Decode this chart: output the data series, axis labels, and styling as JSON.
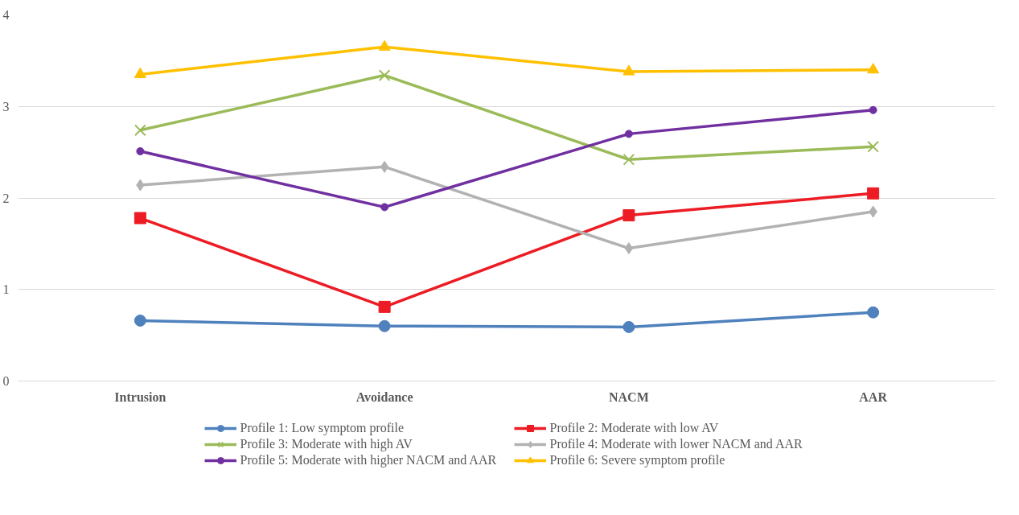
{
  "chart_data": {
    "type": "line",
    "categories": [
      "Intrusion",
      "Avoidance",
      "NACM",
      "AAR"
    ],
    "ylim": [
      0,
      4
    ],
    "yticks": [
      0,
      1,
      2,
      3,
      4
    ],
    "grid": "y",
    "legend": "bottom",
    "series": [
      {
        "name": "Profile 1: Low symptom profile",
        "color": "#4f81bd",
        "marker": "circle",
        "values": [
          0.66,
          0.6,
          0.59,
          0.75
        ]
      },
      {
        "name": "Profile 2: Moderate with low AV",
        "color": "#ed1c24",
        "marker": "square",
        "values": [
          1.78,
          0.81,
          1.81,
          2.05
        ]
      },
      {
        "name": "Profile 3: Moderate with high AV",
        "color": "#9bbb59",
        "marker": "cross",
        "values": [
          2.74,
          3.34,
          2.42,
          2.56
        ]
      },
      {
        "name": "Profile 4: Moderate with lower NACM and AAR",
        "color": "#b2b2b2",
        "marker": "diamond",
        "values": [
          2.14,
          2.34,
          1.45,
          1.85
        ]
      },
      {
        "name": "Profile 5: Moderate with higher NACM and AAR",
        "color": "#7030a0",
        "marker": "circle",
        "values": [
          2.51,
          1.9,
          2.7,
          2.96
        ]
      },
      {
        "name": "Profile 6: Severe symptom profile",
        "color": "#ffc000",
        "marker": "triangle",
        "values": [
          3.35,
          3.65,
          3.38,
          3.4
        ]
      }
    ]
  }
}
